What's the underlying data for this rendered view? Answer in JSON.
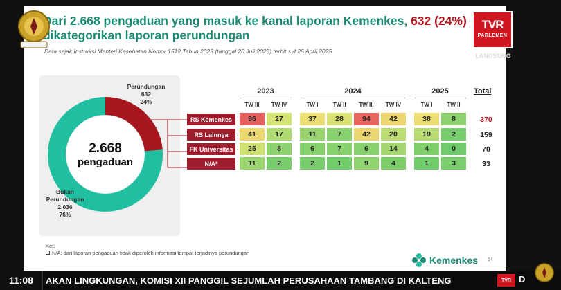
{
  "slide": {
    "headline_pre": "Dari 2.668 pengaduan yang masuk ke kanal laporan Kemenkes, ",
    "headline_hl": "632 (24%)",
    "headline_post": "dikategorikan laporan perundungan",
    "subline": "Data sejak Instruksi Menteri Kesehatan Nomor 1512 Tahun 2023 (tanggal 20 Juli 2023) terbit s.d 25 April 2025",
    "donut": {
      "center_value": "2.668",
      "center_label": "pengaduan",
      "perundungan_label": "Perundungan",
      "perundungan_value": "632",
      "perundungan_pct": "24%",
      "bukan_label1": "Bukan",
      "bukan_label2": "Perundungan",
      "bukan_value": "2.036",
      "bukan_pct": "76%",
      "color_red": "#a8161f",
      "color_teal": "#1fbf9f"
    },
    "table": {
      "years": [
        "2023",
        "2024",
        "2025"
      ],
      "total_header": "Total",
      "quarters": [
        "TW III",
        "TW IV",
        "TW I",
        "TW II",
        "TW III",
        "TW IV",
        "TW I",
        "TW II"
      ],
      "rows": [
        {
          "label": "RS Kemenkes",
          "values": [
            "96",
            "27",
            "37",
            "28",
            "94",
            "42",
            "38",
            "8"
          ],
          "total": "370"
        },
        {
          "label": "RS Lainnya",
          "values": [
            "41",
            "17",
            "11",
            "7",
            "42",
            "20",
            "19",
            "2"
          ],
          "total": "159"
        },
        {
          "label": "FK Universitas",
          "values": [
            "25",
            "8",
            "6",
            "7",
            "6",
            "14",
            "4",
            "0"
          ],
          "total": "70"
        },
        {
          "label": "N/A*",
          "values": [
            "11",
            "2",
            "2",
            "1",
            "9",
            "4",
            "1",
            "3"
          ],
          "total": "33"
        }
      ]
    },
    "ket_title": "Ket:",
    "ket_note": "N/A: dari laporan pengaduan tidak diperoleh informasi tempat terjadinya perundungan",
    "logo_text": "Kemenkes",
    "page_number": "54"
  },
  "broadcast": {
    "channel_big": "TVR",
    "channel_small": "PARLEMEN",
    "live": "LANGSUNG",
    "clock": "11:08",
    "ticker": "AKAN LINGKUNGAN, KOMISI XII PANGGIL SEJUMLAH PERUSAHAAN TAMBANG DI KALTENG",
    "ticker_logo": "TVR",
    "ticker_tail": "D",
    "dpr_emblem": "DPR RI"
  }
}
